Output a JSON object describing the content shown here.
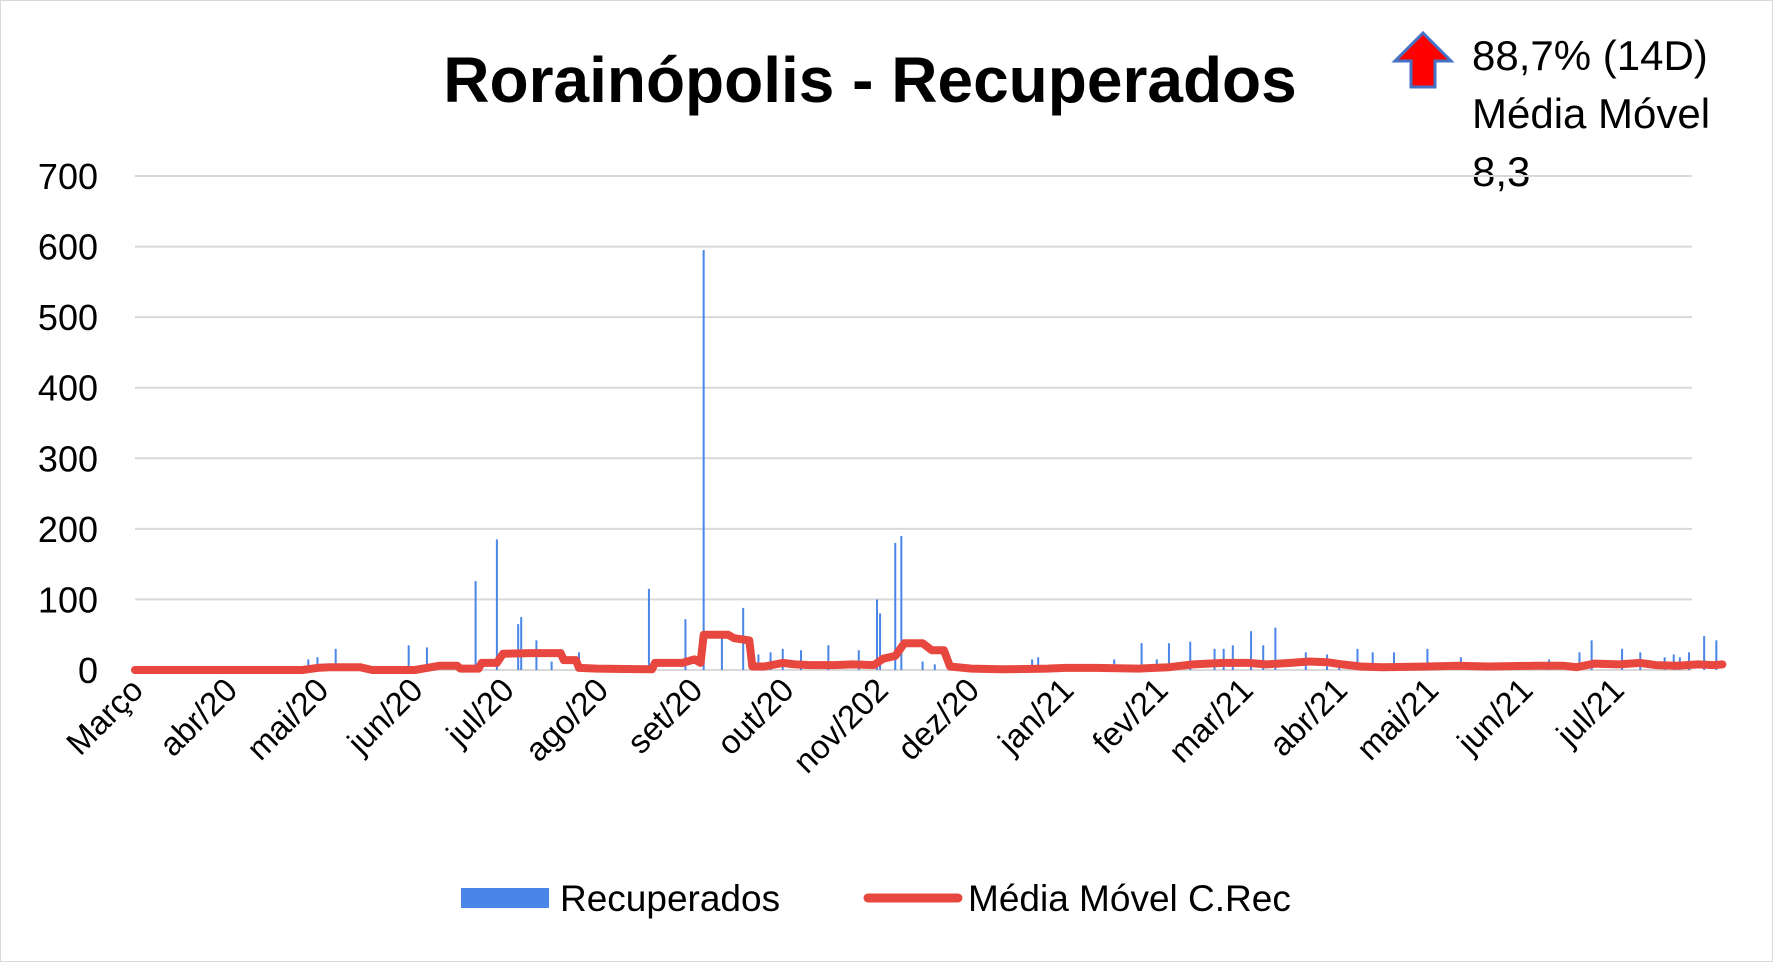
{
  "chart_data": {
    "type": "bar",
    "title": "Rorainópolis - Recuperados",
    "annotation": {
      "trend_icon": "red-up-arrow-icon",
      "lines": [
        "88,7% (14D)",
        "Média Móvel",
        "8,3"
      ]
    },
    "ylim": [
      0,
      700
    ],
    "yticks": [
      "0",
      "100",
      "200",
      "300",
      "400",
      "500",
      "600",
      "700"
    ],
    "x_tick_labels": [
      "Março",
      "abr/20",
      "mai/20",
      "jun/20",
      "jul/20",
      "ago/20",
      "set/20",
      "out/20",
      "nov/202",
      "dez/20",
      "jan/21",
      "fev/21",
      "mar/21",
      "abr/21",
      "mai/21",
      "jun/21",
      "jul/21"
    ],
    "x_tick_days": [
      0,
      31,
      61,
      92,
      122,
      153,
      184,
      214,
      245,
      275,
      306,
      337,
      365,
      396,
      426,
      457,
      487
    ],
    "x_range_days": [
      0,
      512
    ],
    "series": [
      {
        "name": "Recuperados",
        "kind": "bar",
        "color": "#4a86e8",
        "points": [
          [
            57,
            15
          ],
          [
            60,
            18
          ],
          [
            66,
            30
          ],
          [
            90,
            35
          ],
          [
            96,
            32
          ],
          [
            112,
            126
          ],
          [
            119,
            185
          ],
          [
            126,
            65
          ],
          [
            127,
            75
          ],
          [
            132,
            42
          ],
          [
            137,
            12
          ],
          [
            146,
            25
          ],
          [
            169,
            115
          ],
          [
            181,
            72
          ],
          [
            187,
            595
          ],
          [
            193,
            48
          ],
          [
            200,
            88
          ],
          [
            205,
            22
          ],
          [
            209,
            25
          ],
          [
            213,
            30
          ],
          [
            219,
            28
          ],
          [
            228,
            35
          ],
          [
            238,
            28
          ],
          [
            244,
            100
          ],
          [
            245,
            80
          ],
          [
            250,
            180
          ],
          [
            252,
            190
          ],
          [
            259,
            12
          ],
          [
            263,
            8
          ],
          [
            295,
            15
          ],
          [
            297,
            18
          ],
          [
            322,
            15
          ],
          [
            331,
            38
          ],
          [
            336,
            15
          ],
          [
            340,
            38
          ],
          [
            347,
            40
          ],
          [
            355,
            30
          ],
          [
            358,
            30
          ],
          [
            361,
            35
          ],
          [
            367,
            55
          ],
          [
            371,
            35
          ],
          [
            375,
            60
          ],
          [
            385,
            25
          ],
          [
            392,
            22
          ],
          [
            396,
            12
          ],
          [
            402,
            30
          ],
          [
            407,
            25
          ],
          [
            414,
            25
          ],
          [
            425,
            30
          ],
          [
            436,
            18
          ],
          [
            465,
            15
          ],
          [
            475,
            25
          ],
          [
            479,
            42
          ],
          [
            489,
            30
          ],
          [
            495,
            25
          ],
          [
            503,
            18
          ],
          [
            506,
            22
          ],
          [
            508,
            18
          ],
          [
            511,
            25
          ],
          [
            516,
            48
          ],
          [
            520,
            42
          ]
        ]
      },
      {
        "name": "Média Móvel C.Rec",
        "kind": "line",
        "color": "#e8473f",
        "points": [
          [
            0,
            0
          ],
          [
            55,
            0
          ],
          [
            60,
            3
          ],
          [
            64,
            4
          ],
          [
            74,
            4
          ],
          [
            78,
            0
          ],
          [
            92,
            0
          ],
          [
            96,
            3
          ],
          [
            100,
            6
          ],
          [
            106,
            6
          ],
          [
            107,
            2
          ],
          [
            113,
            2
          ],
          [
            114,
            10
          ],
          [
            119,
            10
          ],
          [
            121,
            23
          ],
          [
            130,
            24
          ],
          [
            140,
            24
          ],
          [
            141,
            14
          ],
          [
            145,
            14
          ],
          [
            146,
            3
          ],
          [
            152,
            2
          ],
          [
            170,
            1
          ],
          [
            171,
            10
          ],
          [
            180,
            10
          ],
          [
            184,
            15
          ],
          [
            186,
            10
          ],
          [
            187,
            50
          ],
          [
            195,
            50
          ],
          [
            197,
            45
          ],
          [
            202,
            42
          ],
          [
            203,
            5
          ],
          [
            207,
            5
          ],
          [
            213,
            10
          ],
          [
            217,
            8
          ],
          [
            222,
            7
          ],
          [
            230,
            7
          ],
          [
            236,
            8
          ],
          [
            243,
            7
          ],
          [
            246,
            16
          ],
          [
            250,
            20
          ],
          [
            253,
            38
          ],
          [
            259,
            38
          ],
          [
            262,
            28
          ],
          [
            266,
            28
          ],
          [
            268,
            5
          ],
          [
            275,
            2
          ],
          [
            285,
            1
          ],
          [
            300,
            2
          ],
          [
            306,
            3
          ],
          [
            316,
            3
          ],
          [
            330,
            2
          ],
          [
            340,
            4
          ],
          [
            348,
            8
          ],
          [
            358,
            10
          ],
          [
            366,
            10
          ],
          [
            372,
            8
          ],
          [
            380,
            10
          ],
          [
            386,
            12
          ],
          [
            392,
            11
          ],
          [
            397,
            8
          ],
          [
            403,
            5
          ],
          [
            410,
            4
          ],
          [
            425,
            5
          ],
          [
            435,
            6
          ],
          [
            445,
            5
          ],
          [
            460,
            6
          ],
          [
            470,
            6
          ],
          [
            474,
            4
          ],
          [
            480,
            9
          ],
          [
            488,
            8
          ],
          [
            495,
            10
          ],
          [
            500,
            7
          ],
          [
            507,
            6
          ],
          [
            514,
            8
          ],
          [
            519,
            7
          ],
          [
            522,
            8
          ]
        ]
      }
    ],
    "legend": {
      "position": "bottom",
      "items": [
        {
          "label": "Recuperados",
          "color": "#4a86e8"
        },
        {
          "label": "Média Móvel C.Rec",
          "color": "#e8473f"
        }
      ]
    },
    "grid": true
  }
}
